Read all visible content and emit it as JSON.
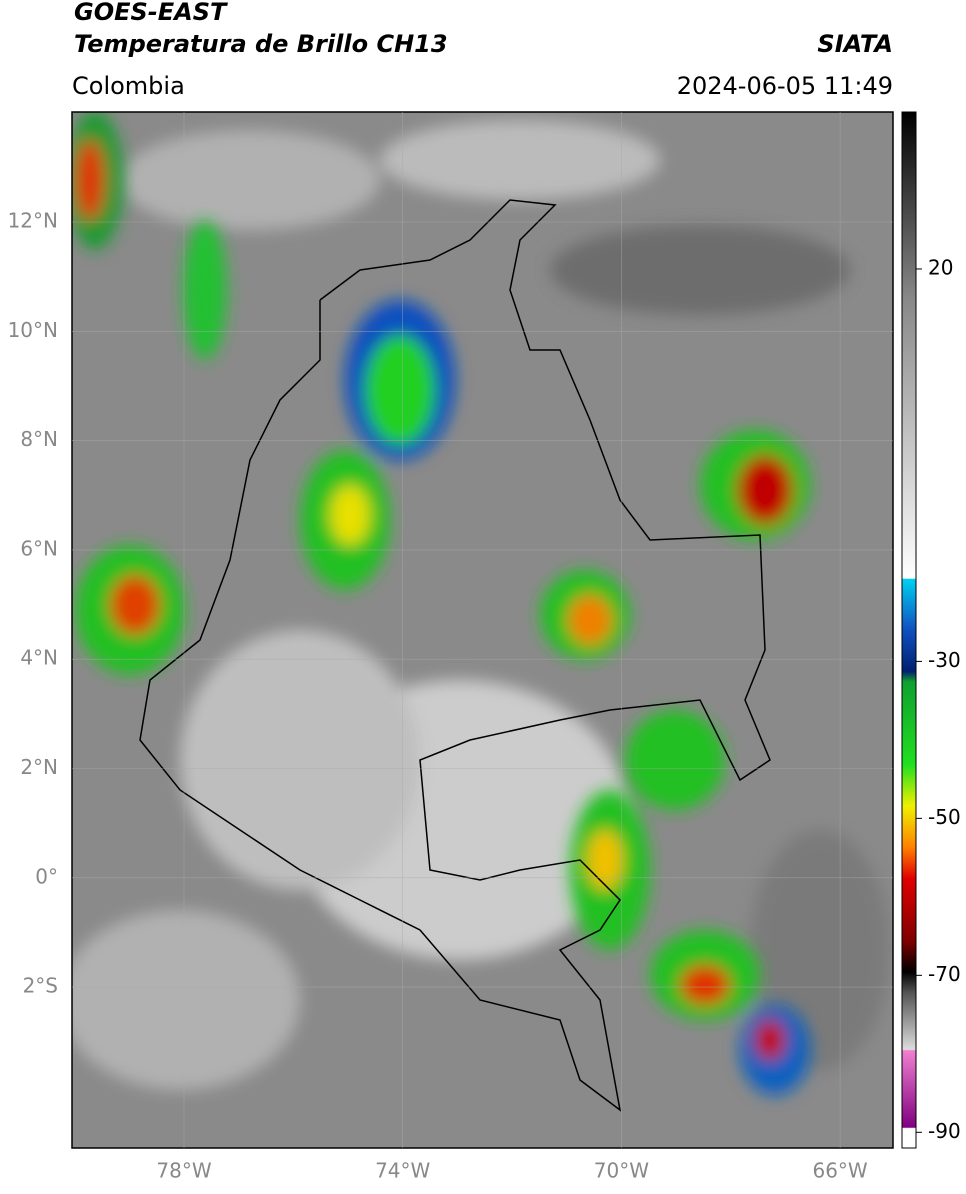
{
  "header": {
    "title": "GOES-EAST",
    "subtitle": "Temperatura de Brillo CH13",
    "source": "SIATA",
    "region": "Colombia",
    "timestamp": "2024-06-05 11:49"
  },
  "map": {
    "lat_labels": [
      "12°N",
      "10°N",
      "8°N",
      "6°N",
      "4°N",
      "2°N",
      "0°",
      "2°S"
    ],
    "lon_labels": [
      "78°W",
      "74°W",
      "70°W",
      "66°W"
    ]
  },
  "colorbar": {
    "lim": [
      -92,
      40
    ],
    "ticks": [
      20,
      -30,
      -50,
      -70,
      -90
    ]
  }
}
